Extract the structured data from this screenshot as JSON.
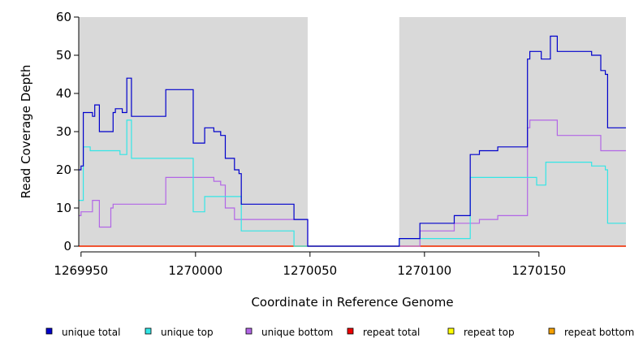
{
  "chart_data": {
    "type": "line",
    "step": true,
    "title": "",
    "xlabel": "Coordinate in Reference Genome",
    "ylabel": "Read Coverage Depth",
    "xlim": [
      1269949,
      1270188
    ],
    "ylim": [
      0,
      60
    ],
    "xticks": [
      1269950,
      1270000,
      1270050,
      1270100,
      1270150
    ],
    "xtick_labels": [
      "1269950",
      "1270000",
      "1270050",
      "1270100",
      "1270150"
    ],
    "yticks": [
      0,
      10,
      20,
      30,
      40,
      50,
      60
    ],
    "ytick_labels": [
      "0",
      "10",
      "20",
      "30",
      "40",
      "50",
      "60"
    ],
    "shaded_regions": [
      {
        "x": [
          1269949,
          1270049
        ],
        "color": "#d9d9d9"
      },
      {
        "x": [
          1270089,
          1270188
        ],
        "color": "#d9d9d9"
      }
    ],
    "legend_position": "bottom",
    "series": [
      {
        "name": "unique total",
        "color": "#0000cc",
        "points": [
          [
            1269949,
            20
          ],
          [
            1269950,
            21
          ],
          [
            1269951,
            35
          ],
          [
            1269955,
            34
          ],
          [
            1269956,
            37
          ],
          [
            1269958,
            30
          ],
          [
            1269964,
            35
          ],
          [
            1269965,
            36
          ],
          [
            1269968,
            35
          ],
          [
            1269970,
            44
          ],
          [
            1269972,
            34
          ],
          [
            1269987,
            41
          ],
          [
            1269999,
            27
          ],
          [
            1270004,
            31
          ],
          [
            1270008,
            30
          ],
          [
            1270011,
            29
          ],
          [
            1270013,
            23
          ],
          [
            1270017,
            20
          ],
          [
            1270019,
            19
          ],
          [
            1270020,
            11
          ],
          [
            1270043,
            7
          ],
          [
            1270049,
            0
          ],
          [
            1270089,
            2
          ],
          [
            1270098,
            6
          ],
          [
            1270113,
            8
          ],
          [
            1270120,
            24
          ],
          [
            1270124,
            25
          ],
          [
            1270132,
            26
          ],
          [
            1270145,
            49
          ],
          [
            1270146,
            51
          ],
          [
            1270151,
            49
          ],
          [
            1270155,
            55
          ],
          [
            1270158,
            51
          ],
          [
            1270173,
            50
          ],
          [
            1270177,
            46
          ],
          [
            1270179,
            45
          ],
          [
            1270180,
            31
          ],
          [
            1270188,
            31
          ]
        ]
      },
      {
        "name": "unique top",
        "color": "#33e6e6",
        "points": [
          [
            1269949,
            12
          ],
          [
            1269951,
            26
          ],
          [
            1269954,
            25
          ],
          [
            1269967,
            24
          ],
          [
            1269970,
            33
          ],
          [
            1269972,
            23
          ],
          [
            1269999,
            9
          ],
          [
            1270004,
            13
          ],
          [
            1270020,
            4
          ],
          [
            1270043,
            0
          ],
          [
            1270089,
            2
          ],
          [
            1270098,
            2
          ],
          [
            1270120,
            18
          ],
          [
            1270149,
            16
          ],
          [
            1270153,
            22
          ],
          [
            1270173,
            21
          ],
          [
            1270179,
            20
          ],
          [
            1270180,
            6
          ],
          [
            1270188,
            6
          ]
        ]
      },
      {
        "name": "unique bottom",
        "color": "#b266e6",
        "points": [
          [
            1269949,
            8
          ],
          [
            1269950,
            9
          ],
          [
            1269955,
            12
          ],
          [
            1269958,
            5
          ],
          [
            1269963,
            10
          ],
          [
            1269964,
            11
          ],
          [
            1269987,
            18
          ],
          [
            1270008,
            17
          ],
          [
            1270011,
            16
          ],
          [
            1270013,
            10
          ],
          [
            1270017,
            7
          ],
          [
            1270049,
            0
          ],
          [
            1270098,
            4
          ],
          [
            1270113,
            6
          ],
          [
            1270124,
            7
          ],
          [
            1270132,
            8
          ],
          [
            1270145,
            31
          ],
          [
            1270146,
            33
          ],
          [
            1270158,
            29
          ],
          [
            1270177,
            25
          ],
          [
            1270188,
            25
          ]
        ]
      },
      {
        "name": "repeat total",
        "color": "#ee0000",
        "points": [
          [
            1269949,
            0
          ],
          [
            1270188,
            0
          ]
        ]
      },
      {
        "name": "repeat top",
        "color": "#ffff00",
        "points": [
          [
            1269949,
            0
          ],
          [
            1270188,
            0
          ]
        ]
      },
      {
        "name": "repeat bottom",
        "color": "#f5a000",
        "points": [
          [
            1269949,
            0
          ],
          [
            1270188,
            0
          ]
        ]
      }
    ]
  }
}
